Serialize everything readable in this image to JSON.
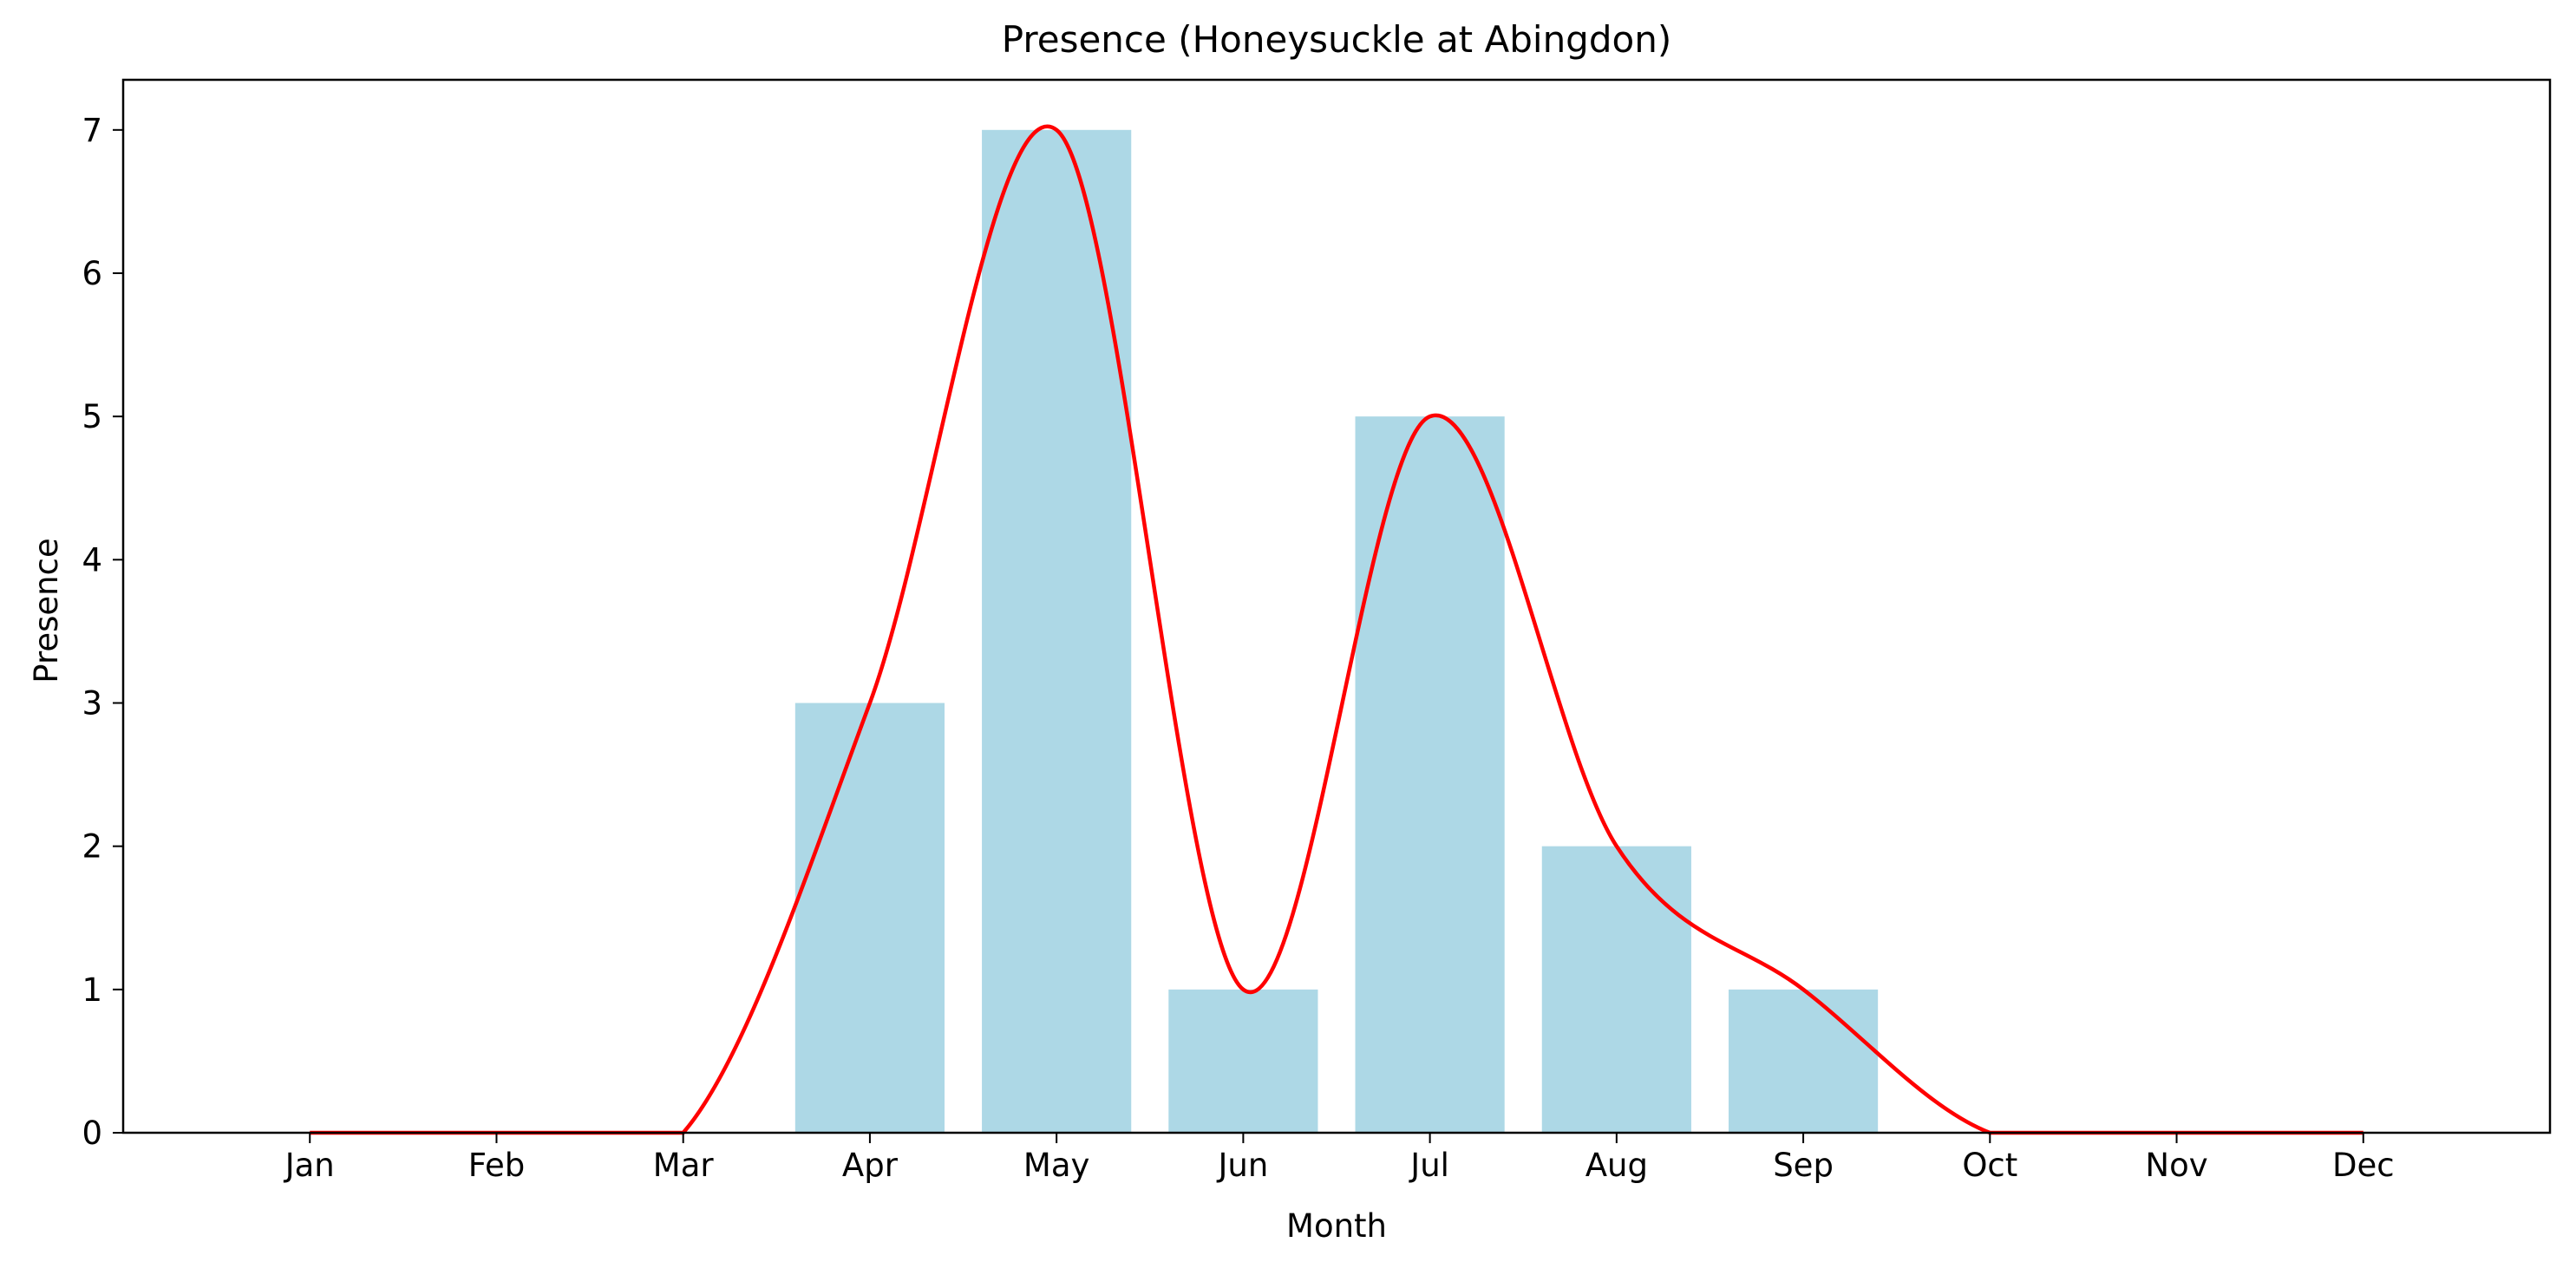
{
  "chart_data": {
    "type": "bar",
    "title": "Presence (Honeysuckle at Abingdon)",
    "xlabel": "Month",
    "ylabel": "Presence",
    "categories": [
      "Jan",
      "Feb",
      "Mar",
      "Apr",
      "May",
      "Jun",
      "Jul",
      "Aug",
      "Sep",
      "Oct",
      "Nov",
      "Dec"
    ],
    "values": [
      0,
      0,
      0,
      3,
      7,
      1,
      5,
      2,
      1,
      0,
      0,
      0
    ],
    "series": [
      {
        "kind": "bar",
        "values": [
          0,
          0,
          0,
          3,
          7,
          1,
          5,
          2,
          1,
          0,
          0,
          0
        ]
      },
      {
        "kind": "smoothed-line",
        "values": [
          0,
          0,
          0,
          3,
          7,
          1,
          5,
          2,
          1,
          0,
          0,
          0
        ]
      }
    ],
    "yticks": [
      0,
      1,
      2,
      3,
      4,
      5,
      6,
      7
    ],
    "ylim": [
      0,
      7.35
    ],
    "xlim": [
      -1,
      12
    ],
    "grid": false,
    "colors": {
      "bar": "#add8e6",
      "line": "#ff0000",
      "axes": "#000000",
      "background": "#ffffff"
    }
  }
}
